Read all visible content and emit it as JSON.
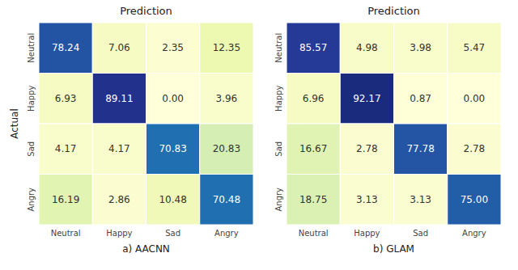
{
  "chart_data": [
    {
      "type": "heatmap",
      "title": "Prediction",
      "x_label": "a) AACNN",
      "y_label": "Actual",
      "categories": [
        "Neutral",
        "Happy",
        "Sad",
        "Angry"
      ],
      "values": [
        [
          78.24,
          7.06,
          2.35,
          12.35
        ],
        [
          6.93,
          89.11,
          0.0,
          3.96
        ],
        [
          4.17,
          4.17,
          70.83,
          20.83
        ],
        [
          16.19,
          2.86,
          10.48,
          70.48
        ]
      ],
      "value_labels": [
        [
          "78.24",
          "7.06",
          "2.35",
          "12.35"
        ],
        [
          "6.93",
          "89.11",
          "0.00",
          "3.96"
        ],
        [
          "4.17",
          "4.17",
          "70.83",
          "20.83"
        ],
        [
          "16.19",
          "2.86",
          "10.48",
          "70.48"
        ]
      ],
      "color": "YlGnBu",
      "color_range": [
        0,
        100
      ],
      "data_labels": true
    },
    {
      "type": "heatmap",
      "title": "Prediction",
      "x_label": "b) GLAM",
      "categories": [
        "Neutral",
        "Happy",
        "Sad",
        "Angry"
      ],
      "values": [
        [
          85.57,
          4.98,
          3.98,
          5.47
        ],
        [
          6.96,
          92.17,
          0.87,
          0.0
        ],
        [
          16.67,
          2.78,
          77.78,
          2.78
        ],
        [
          18.75,
          3.13,
          3.13,
          75.0
        ]
      ],
      "value_labels": [
        [
          "85.57",
          "4.98",
          "3.98",
          "5.47"
        ],
        [
          "6.96",
          "92.17",
          "0.87",
          "0.00"
        ],
        [
          "16.67",
          "2.78",
          "77.78",
          "2.78"
        ],
        [
          "18.75",
          "3.13",
          "3.13",
          "75.00"
        ]
      ],
      "color": "YlGnBu",
      "color_range": [
        0,
        100
      ],
      "data_labels": true
    }
  ]
}
